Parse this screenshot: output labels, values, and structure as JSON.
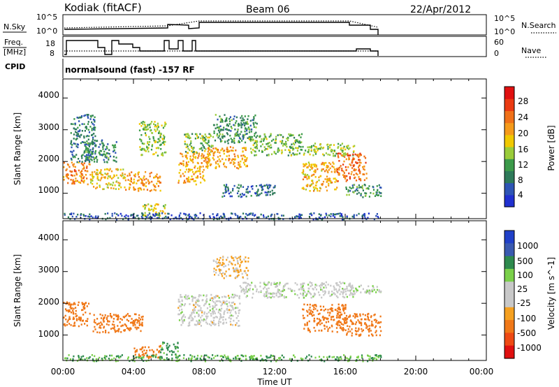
{
  "header": {
    "station": "Kodiak (fitACF)",
    "beam": "Beam 06",
    "date": "22/Apr/2012"
  },
  "nsky_panel": {
    "label": "N.Sky",
    "left_ticks": [
      "10^5",
      "10^0"
    ],
    "right_ticks": [
      "10^5",
      "10^0"
    ],
    "right_label": "N.Search",
    "right_label_style": "dotted"
  },
  "freq_panel": {
    "label_line1": "Freq.",
    "label_line2": "[MHz]",
    "left_ticks": [
      "18",
      "8"
    ],
    "right_ticks": [
      "60",
      "0"
    ],
    "right_label": "Nave",
    "right_label_style": "dotted"
  },
  "cpid": {
    "label": "CPID",
    "text": "normalsound (fast) -157 RF"
  },
  "colors": {
    "power": [
      "#2030d0",
      "#2e55b5",
      "#2e7a5a",
      "#3c9a4a",
      "#9acc3a",
      "#f0c800",
      "#f59a1a",
      "#f07018",
      "#ea3a12",
      "#e01010"
    ],
    "velocity": [
      "#2040c8",
      "#3a5ab0",
      "#2e8a4e",
      "#7ad04a",
      "#c8c8c8",
      "#c8c8c8",
      "#f5a020",
      "#f07818",
      "#ee4a14",
      "#e01010"
    ]
  },
  "chart_data": [
    {
      "type": "heatmap",
      "panel": "power",
      "ylabel": "Slant Range [km]",
      "y_ticks": [
        "1000",
        "2000",
        "3000",
        "4000"
      ],
      "ylim": [
        200,
        4600
      ],
      "x_ticks": [
        "00:00",
        "04:00",
        "08:00",
        "12:00",
        "16:00",
        "20:00",
        "00:00"
      ],
      "xlim_hours": [
        0,
        24
      ],
      "data_end_hour": 18.0,
      "colorbar": {
        "label": "Power [dB]",
        "ticks": [
          "28",
          "24",
          "20",
          "16",
          "12",
          "8",
          "4"
        ],
        "range": [
          0,
          30
        ]
      },
      "echo_bands": [
        {
          "t0": 0.0,
          "t1": 1.5,
          "r0": 1300,
          "r1": 2000,
          "v": 21
        },
        {
          "t0": 0.4,
          "t1": 1.8,
          "r0": 2000,
          "r1": 3500,
          "v": 7
        },
        {
          "t0": 1.5,
          "t1": 3.5,
          "r0": 1150,
          "r1": 1800,
          "v": 17
        },
        {
          "t0": 1.2,
          "t1": 3.0,
          "r0": 2000,
          "r1": 2700,
          "v": 9
        },
        {
          "t0": 3.5,
          "t1": 5.5,
          "r0": 1100,
          "r1": 1700,
          "v": 20
        },
        {
          "t0": 4.3,
          "t1": 5.8,
          "r0": 2200,
          "r1": 3300,
          "v": 13
        },
        {
          "t0": 4.5,
          "t1": 5.8,
          "r0": 300,
          "r1": 700,
          "v": 15
        },
        {
          "t0": 6.5,
          "t1": 8.0,
          "r0": 1300,
          "r1": 2300,
          "v": 19
        },
        {
          "t0": 6.8,
          "t1": 8.5,
          "r0": 2300,
          "r1": 2900,
          "v": 12
        },
        {
          "t0": 8.0,
          "t1": 10.5,
          "r0": 1800,
          "r1": 2500,
          "v": 19
        },
        {
          "t0": 8.5,
          "t1": 11.0,
          "r0": 2600,
          "r1": 3500,
          "v": 9
        },
        {
          "t0": 10.5,
          "t1": 13.5,
          "r0": 2200,
          "r1": 2900,
          "v": 12
        },
        {
          "t0": 13.5,
          "t1": 16.5,
          "r0": 2200,
          "r1": 2600,
          "v": 13
        },
        {
          "t0": 13.5,
          "t1": 15.5,
          "r0": 1100,
          "r1": 2000,
          "v": 18
        },
        {
          "t0": 15.5,
          "t1": 17.2,
          "r0": 1400,
          "r1": 2300,
          "v": 22
        },
        {
          "t0": 16.0,
          "t1": 18.0,
          "r0": 900,
          "r1": 1300,
          "v": 9
        },
        {
          "t0": 9.0,
          "t1": 12.0,
          "r0": 900,
          "r1": 1300,
          "v": 6
        },
        {
          "t0": 0.0,
          "t1": 18.0,
          "r0": 200,
          "r1": 400,
          "v": 5
        }
      ]
    },
    {
      "type": "heatmap",
      "panel": "velocity",
      "ylabel": "Slant Range [km]",
      "y_ticks": [
        "1000",
        "2000",
        "3000",
        "4000"
      ],
      "ylim": [
        200,
        4600
      ],
      "x_ticks": [
        "00:00",
        "04:00",
        "08:00",
        "12:00",
        "16:00",
        "20:00",
        "00:00"
      ],
      "xlim_hours": [
        0,
        24
      ],
      "xlabel": "Time UT",
      "data_end_hour": 18.0,
      "colorbar": {
        "label": "Velocity [m s^-1]",
        "ticks": [
          "1000",
          "500",
          "100",
          "25",
          "-25",
          "-100",
          "-500",
          "-1000"
        ]
      },
      "echo_bands": [
        {
          "t0": 0.0,
          "t1": 1.5,
          "r0": 1300,
          "r1": 2100,
          "v": -120
        },
        {
          "t0": 1.5,
          "t1": 4.5,
          "r0": 1100,
          "r1": 1700,
          "v": -90
        },
        {
          "t0": 4.0,
          "t1": 5.5,
          "r0": 300,
          "r1": 700,
          "v": -150
        },
        {
          "t0": 5.5,
          "t1": 6.5,
          "r0": 400,
          "r1": 800,
          "v": 80
        },
        {
          "t0": 6.5,
          "t1": 10.0,
          "r0": 1300,
          "r1": 2300,
          "v": 0
        },
        {
          "t0": 10.0,
          "t1": 16.5,
          "r0": 2200,
          "r1": 2700,
          "v": 5
        },
        {
          "t0": 13.5,
          "t1": 16.0,
          "r0": 1100,
          "r1": 2000,
          "v": -110
        },
        {
          "t0": 16.0,
          "t1": 18.0,
          "r0": 1000,
          "r1": 1700,
          "v": -100
        },
        {
          "t0": 16.2,
          "t1": 18.0,
          "r0": 2300,
          "r1": 2600,
          "v": 10
        },
        {
          "t0": 8.5,
          "t1": 10.5,
          "r0": 2800,
          "r1": 3500,
          "v": -30
        },
        {
          "t0": 0.0,
          "t1": 18.0,
          "r0": 200,
          "r1": 400,
          "v": 60
        }
      ]
    }
  ]
}
